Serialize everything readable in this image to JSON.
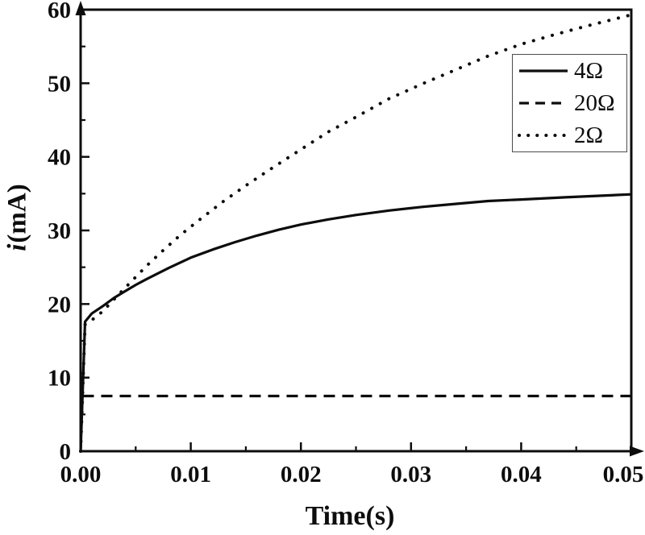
{
  "chart_data": {
    "type": "line",
    "title": "",
    "xlabel": "Time(s)",
    "ylabel": "i(mA)",
    "ylabel_italic": "i",
    "ylabel_rest": "(mA)",
    "xlim": [
      0,
      0.05
    ],
    "ylim": [
      0,
      60
    ],
    "grid": false,
    "background": "#ffffff",
    "axis_color": "#0d0d0d",
    "legend_position": "upper right",
    "x_major_ticks": {
      "values": [
        0,
        0.01,
        0.02,
        0.03,
        0.04,
        0.05
      ],
      "labels": [
        "0.00",
        "0.01",
        "0.02",
        "0.03",
        "0.04",
        "0.05"
      ]
    },
    "x_minor_ticks": [
      0.005,
      0.015,
      0.025,
      0.035,
      0.045
    ],
    "y_major_ticks": {
      "values": [
        0,
        10,
        20,
        30,
        40,
        50,
        60
      ],
      "labels": [
        "0",
        "10",
        "20",
        "30",
        "40",
        "50",
        "60"
      ]
    },
    "y_minor_ticks": [
      5,
      15,
      25,
      35,
      45,
      55
    ],
    "series": [
      {
        "name": "4Ω",
        "style": "solid",
        "color": "#0d0d0d",
        "x": [
          0,
          0.0004,
          0.001,
          0.002,
          0.003,
          0.004,
          0.005,
          0.006,
          0.008,
          0.01,
          0.012,
          0.014,
          0.016,
          0.018,
          0.02,
          0.0225,
          0.025,
          0.028,
          0.031,
          0.034,
          0.037,
          0.04,
          0.044,
          0.05
        ],
        "y": [
          0,
          17.6,
          18.7,
          19.7,
          20.8,
          21.7,
          22.6,
          23.4,
          24.9,
          26.3,
          27.4,
          28.4,
          29.3,
          30.1,
          30.8,
          31.5,
          32.1,
          32.7,
          33.2,
          33.6,
          34.0,
          34.2,
          34.5,
          34.9
        ]
      },
      {
        "name": "20Ω",
        "style": "dashed",
        "color": "#0d0d0d",
        "x": [
          0,
          0.00015,
          0.05
        ],
        "y": [
          0,
          7.5,
          7.5
        ]
      },
      {
        "name": "2Ω",
        "style": "dotted",
        "color": "#0d0d0d",
        "x": [
          0,
          0.0004,
          0.001,
          0.002,
          0.003,
          0.0045,
          0.006,
          0.0075,
          0.009,
          0.011,
          0.013,
          0.015,
          0.0175,
          0.02,
          0.0225,
          0.025,
          0.028,
          0.031,
          0.034,
          0.037,
          0.04,
          0.043,
          0.046,
          0.05
        ],
        "y": [
          0,
          17.2,
          17.8,
          19.0,
          20.6,
          22.9,
          25.2,
          27.3,
          29.3,
          31.7,
          34.0,
          36.1,
          38.6,
          41.0,
          43.4,
          45.4,
          47.9,
          49.9,
          51.8,
          53.7,
          55.3,
          56.6,
          57.8,
          59.3
        ]
      }
    ]
  }
}
